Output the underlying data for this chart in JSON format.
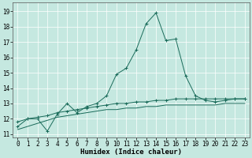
{
  "title": "",
  "xlabel": "Humidex (Indice chaleur)",
  "xlim": [
    -0.5,
    23.5
  ],
  "ylim": [
    10.8,
    19.6
  ],
  "yticks": [
    11,
    12,
    13,
    14,
    15,
    16,
    17,
    18,
    19
  ],
  "xticks": [
    0,
    1,
    2,
    3,
    4,
    5,
    6,
    7,
    8,
    9,
    10,
    11,
    12,
    13,
    14,
    15,
    16,
    17,
    18,
    19,
    20,
    21,
    22,
    23
  ],
  "bg_color": "#c5e8e0",
  "line_color": "#1a6b5a",
  "grid_color": "#ffffff",
  "line1_y": [
    11.5,
    12.0,
    12.0,
    11.2,
    12.3,
    13.0,
    12.4,
    12.8,
    13.0,
    13.5,
    14.9,
    15.3,
    16.5,
    18.2,
    18.9,
    17.1,
    17.2,
    14.8,
    13.5,
    13.2,
    13.1,
    13.2,
    13.3,
    13.3
  ],
  "line2_y": [
    11.8,
    12.0,
    12.1,
    12.2,
    12.4,
    12.5,
    12.6,
    12.7,
    12.8,
    12.9,
    13.0,
    13.0,
    13.1,
    13.1,
    13.2,
    13.2,
    13.3,
    13.3,
    13.3,
    13.3,
    13.3,
    13.3,
    13.3,
    13.3
  ],
  "line3_y": [
    11.3,
    11.5,
    11.7,
    11.9,
    12.1,
    12.2,
    12.3,
    12.4,
    12.5,
    12.6,
    12.6,
    12.7,
    12.7,
    12.8,
    12.8,
    12.9,
    12.9,
    12.9,
    12.9,
    12.9,
    12.9,
    13.0,
    13.0,
    13.0
  ],
  "tick_fontsize": 5.5,
  "xlabel_fontsize": 6.5
}
